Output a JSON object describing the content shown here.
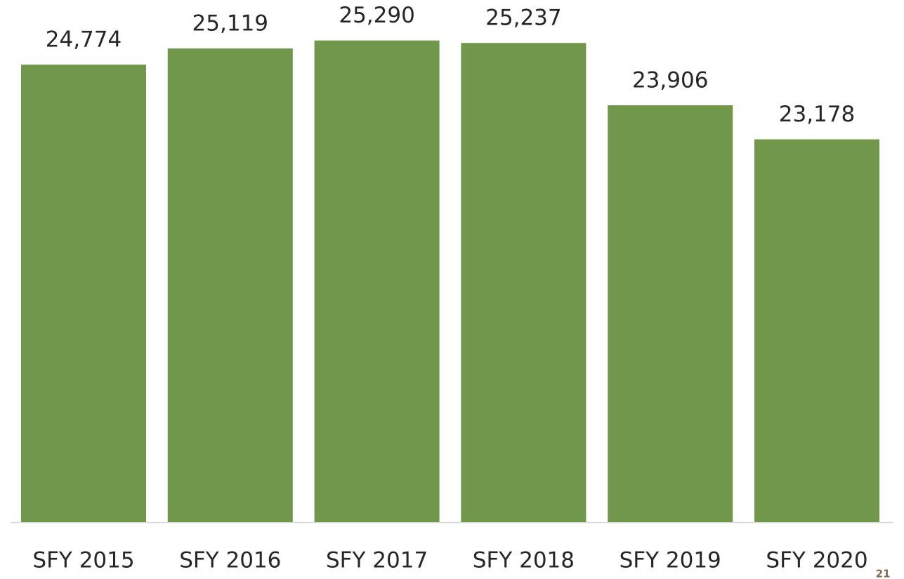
{
  "chart_data": {
    "type": "bar",
    "categories": [
      "SFY 2015",
      "SFY 2016",
      "SFY 2017",
      "SFY 2018",
      "SFY 2019",
      "SFY 2020"
    ],
    "values": [
      24774,
      25119,
      25290,
      25237,
      23906,
      23178
    ],
    "value_labels": [
      "24,774",
      "25,119",
      "25,290",
      "25,237",
      "23,906",
      "23,178"
    ],
    "color": "#70974a",
    "ylim": [
      15000,
      25300
    ]
  },
  "page_number": "21"
}
